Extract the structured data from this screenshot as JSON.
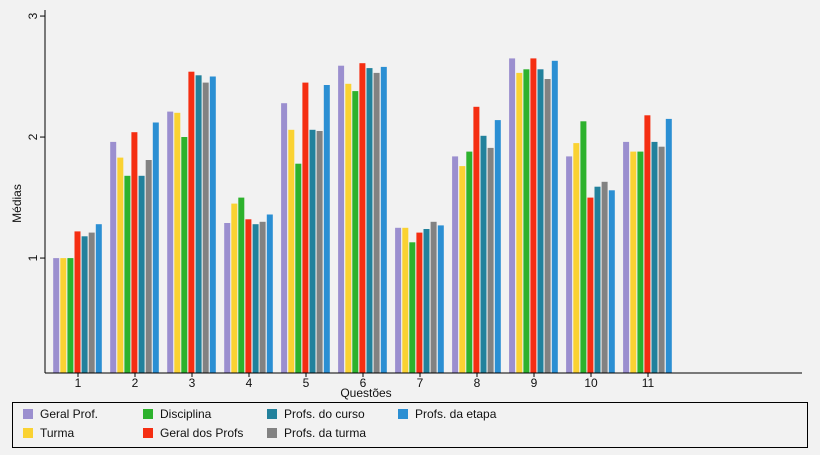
{
  "chart_data": {
    "type": "bar",
    "title": "",
    "xlabel": "Questões",
    "ylabel": "Médias",
    "ylim": [
      0.05,
      3.05
    ],
    "yticks": [
      1,
      2,
      3
    ],
    "categories": [
      "1",
      "2",
      "3",
      "4",
      "5",
      "6",
      "7",
      "8",
      "9",
      "10",
      "11"
    ],
    "series": [
      {
        "name": "Geral Prof.",
        "color": "#9b8fcf",
        "values": [
          1.0,
          1.96,
          2.21,
          1.29,
          2.28,
          2.59,
          1.25,
          1.84,
          2.65,
          1.84,
          1.96
        ]
      },
      {
        "name": "Turma",
        "color": "#fad232",
        "values": [
          1.0,
          1.83,
          2.2,
          1.45,
          2.06,
          2.44,
          1.25,
          1.76,
          2.53,
          1.95,
          1.88
        ]
      },
      {
        "name": "Disciplina",
        "color": "#2db22d",
        "values": [
          1.0,
          1.68,
          2.0,
          1.5,
          1.78,
          2.38,
          1.13,
          1.88,
          2.56,
          2.13,
          1.88
        ]
      },
      {
        "name": "Geral dos Profs",
        "color": "#f52e12",
        "values": [
          1.22,
          2.04,
          2.54,
          1.32,
          2.45,
          2.61,
          1.21,
          2.25,
          2.65,
          1.5,
          2.18
        ]
      },
      {
        "name": "Profs. do curso",
        "color": "#22819c",
        "values": [
          1.18,
          1.68,
          2.51,
          1.28,
          2.06,
          2.57,
          1.24,
          2.01,
          2.56,
          1.59,
          1.96
        ]
      },
      {
        "name": "Profs. da turma",
        "color": "#828282",
        "values": [
          1.21,
          1.81,
          2.45,
          1.3,
          2.05,
          2.53,
          1.3,
          1.91,
          2.48,
          1.63,
          1.92
        ]
      },
      {
        "name": "Profs. da etapa",
        "color": "#2b8fd3",
        "values": [
          1.28,
          2.12,
          2.5,
          1.36,
          2.43,
          2.58,
          1.27,
          2.14,
          2.63,
          1.56,
          2.15
        ]
      }
    ],
    "grid": false,
    "legend_position": "bottom"
  }
}
